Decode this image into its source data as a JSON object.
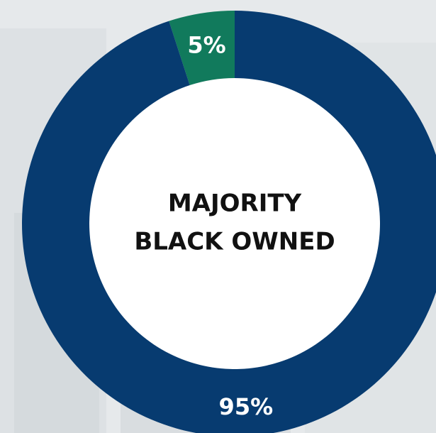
{
  "chart_data": {
    "type": "donut",
    "center_label": [
      "MAJORITY",
      "BLACK OWNED"
    ],
    "categories": [
      null,
      null
    ],
    "values": [
      5,
      95
    ],
    "value_labels": [
      "5%",
      "95%"
    ],
    "colors": [
      "#117a5c",
      "#073b70"
    ]
  }
}
